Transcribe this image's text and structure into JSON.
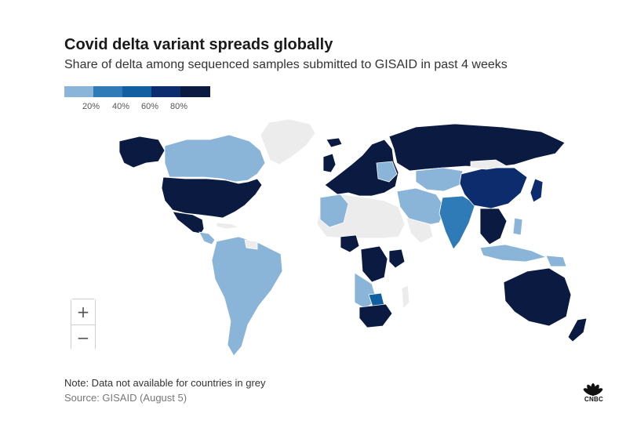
{
  "header": {
    "title": "Covid delta variant spreads globally",
    "subtitle": "Share of delta among sequenced samples submitted to GISAID in past 4 weeks"
  },
  "legend": {
    "bins": [
      {
        "color": "#8ab4d8"
      },
      {
        "color": "#2f7bb8"
      },
      {
        "color": "#115ea0"
      },
      {
        "color": "#0c2c6e"
      },
      {
        "color": "#0b1a40"
      }
    ],
    "ticks": [
      "20%",
      "40%",
      "60%",
      "80%"
    ]
  },
  "colors": {
    "no_data": "#ececec",
    "band_0_20": "#8ab4d8",
    "band_20_40": "#2f7bb8",
    "band_40_60": "#115ea0",
    "band_60_80": "#0c2c6e",
    "band_80_100": "#0b1a40"
  },
  "zoom_controls": {
    "zoom_in": "+",
    "zoom_out": "−"
  },
  "footer": {
    "note": "Note: Data not available for countries in grey",
    "source": "Source: GISAID (August 5)"
  },
  "logo": {
    "text": "CNBC"
  }
}
